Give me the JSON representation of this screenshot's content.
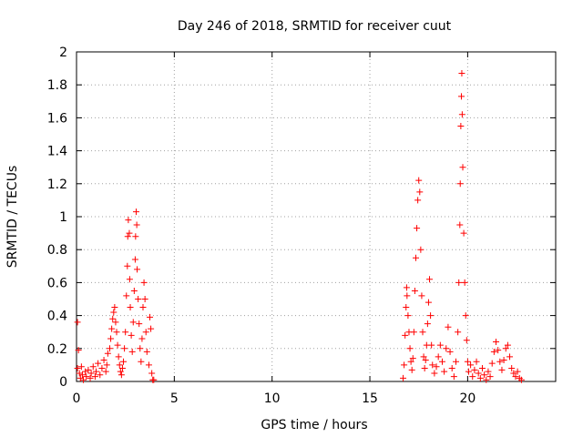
{
  "chart_data": {
    "type": "scatter",
    "title": "Day 246 of 2018, SRMTID for receiver cuut",
    "xlabel": "GPS time / hours",
    "ylabel": "SRMTID / TECUs",
    "xlim": [
      0,
      24.5
    ],
    "ylim": [
      0,
      2
    ],
    "x_ticks": [
      0,
      5,
      10,
      15,
      20
    ],
    "x_tick_labels": [
      "0",
      "5",
      "10",
      "15",
      "20"
    ],
    "y_ticks": [
      0,
      0.2,
      0.4,
      0.6,
      0.8,
      1,
      1.2,
      1.4,
      1.6,
      1.8,
      2
    ],
    "y_tick_labels": [
      "0",
      "0.2",
      "0.4",
      "0.6",
      "0.8",
      "1",
      "1.2",
      "1.4",
      "1.6",
      "1.8",
      "2"
    ],
    "grid": true,
    "marker": "+",
    "color": "#ff0000",
    "series": [
      {
        "name": "SRMTID",
        "points": [
          [
            0.05,
            0.36
          ],
          [
            0.1,
            0.19
          ],
          [
            0.05,
            0.08
          ],
          [
            0.15,
            0.05
          ],
          [
            0.2,
            0.02
          ],
          [
            0.25,
            0.09
          ],
          [
            0.3,
            0.04
          ],
          [
            0.35,
            0.01
          ],
          [
            0.45,
            0.06
          ],
          [
            0.5,
            0.03
          ],
          [
            0.6,
            0.07
          ],
          [
            0.7,
            0.02
          ],
          [
            0.75,
            0.05
          ],
          [
            0.85,
            0.09
          ],
          [
            0.95,
            0.03
          ],
          [
            1.0,
            0.06
          ],
          [
            1.1,
            0.11
          ],
          [
            1.2,
            0.04
          ],
          [
            1.3,
            0.08
          ],
          [
            1.4,
            0.13
          ],
          [
            1.5,
            0.06
          ],
          [
            1.55,
            0.1
          ],
          [
            1.6,
            0.17
          ],
          [
            1.7,
            0.2
          ],
          [
            1.75,
            0.26
          ],
          [
            1.8,
            0.32
          ],
          [
            1.85,
            0.38
          ],
          [
            1.9,
            0.42
          ],
          [
            1.95,
            0.45
          ],
          [
            2.0,
            0.36
          ],
          [
            2.05,
            0.3
          ],
          [
            2.1,
            0.22
          ],
          [
            2.15,
            0.15
          ],
          [
            2.2,
            0.1
          ],
          [
            2.25,
            0.06
          ],
          [
            2.3,
            0.04
          ],
          [
            2.35,
            0.08
          ],
          [
            2.4,
            0.12
          ],
          [
            2.45,
            0.2
          ],
          [
            2.5,
            0.3
          ],
          [
            2.55,
            0.52
          ],
          [
            2.6,
            0.7
          ],
          [
            2.62,
            0.88
          ],
          [
            2.65,
            0.98
          ],
          [
            2.7,
            0.9
          ],
          [
            2.72,
            0.62
          ],
          [
            2.75,
            0.45
          ],
          [
            2.8,
            0.28
          ],
          [
            2.85,
            0.18
          ],
          [
            2.9,
            0.36
          ],
          [
            2.95,
            0.55
          ],
          [
            3.0,
            0.74
          ],
          [
            3.02,
            0.88
          ],
          [
            3.05,
            1.03
          ],
          [
            3.08,
            0.95
          ],
          [
            3.1,
            0.68
          ],
          [
            3.15,
            0.5
          ],
          [
            3.2,
            0.35
          ],
          [
            3.25,
            0.2
          ],
          [
            3.3,
            0.12
          ],
          [
            3.35,
            0.26
          ],
          [
            3.4,
            0.45
          ],
          [
            3.45,
            0.6
          ],
          [
            3.5,
            0.5
          ],
          [
            3.55,
            0.3
          ],
          [
            3.6,
            0.18
          ],
          [
            3.7,
            0.1
          ],
          [
            3.75,
            0.39
          ],
          [
            3.8,
            0.32
          ],
          [
            3.85,
            0.05
          ],
          [
            3.9,
            0.01
          ],
          [
            3.95,
            0.01
          ],
          [
            16.7,
            0.02
          ],
          [
            16.75,
            0.1
          ],
          [
            16.8,
            0.28
          ],
          [
            16.85,
            0.45
          ],
          [
            16.88,
            0.57
          ],
          [
            16.9,
            0.52
          ],
          [
            16.95,
            0.4
          ],
          [
            17.0,
            0.3
          ],
          [
            17.05,
            0.2
          ],
          [
            17.1,
            0.12
          ],
          [
            17.15,
            0.07
          ],
          [
            17.2,
            0.14
          ],
          [
            17.25,
            0.3
          ],
          [
            17.3,
            0.55
          ],
          [
            17.35,
            0.75
          ],
          [
            17.4,
            0.93
          ],
          [
            17.45,
            1.1
          ],
          [
            17.5,
            1.22
          ],
          [
            17.55,
            1.15
          ],
          [
            17.6,
            0.8
          ],
          [
            17.65,
            0.52
          ],
          [
            17.7,
            0.3
          ],
          [
            17.75,
            0.15
          ],
          [
            17.8,
            0.08
          ],
          [
            17.85,
            0.13
          ],
          [
            17.9,
            0.22
          ],
          [
            17.95,
            0.35
          ],
          [
            18.0,
            0.48
          ],
          [
            18.05,
            0.62
          ],
          [
            18.1,
            0.4
          ],
          [
            18.15,
            0.22
          ],
          [
            18.2,
            0.1
          ],
          [
            18.3,
            0.05
          ],
          [
            18.4,
            0.09
          ],
          [
            18.5,
            0.15
          ],
          [
            18.6,
            0.22
          ],
          [
            18.7,
            0.12
          ],
          [
            18.8,
            0.06
          ],
          [
            18.9,
            0.2
          ],
          [
            19.0,
            0.33
          ],
          [
            19.1,
            0.18
          ],
          [
            19.2,
            0.08
          ],
          [
            19.3,
            0.03
          ],
          [
            19.4,
            0.12
          ],
          [
            19.5,
            0.3
          ],
          [
            19.55,
            0.6
          ],
          [
            19.6,
            0.95
          ],
          [
            19.62,
            1.2
          ],
          [
            19.65,
            1.55
          ],
          [
            19.68,
            1.73
          ],
          [
            19.7,
            1.87
          ],
          [
            19.72,
            1.62
          ],
          [
            19.75,
            1.3
          ],
          [
            19.8,
            0.9
          ],
          [
            19.85,
            0.6
          ],
          [
            19.9,
            0.4
          ],
          [
            19.95,
            0.25
          ],
          [
            20.0,
            0.12
          ],
          [
            20.05,
            0.06
          ],
          [
            20.15,
            0.1
          ],
          [
            20.25,
            0.03
          ],
          [
            20.35,
            0.07
          ],
          [
            20.45,
            0.12
          ],
          [
            20.55,
            0.05
          ],
          [
            20.65,
            0.02
          ],
          [
            20.75,
            0.08
          ],
          [
            20.85,
            0.04
          ],
          [
            20.95,
            0.01
          ],
          [
            21.05,
            0.06
          ],
          [
            21.15,
            0.03
          ],
          [
            21.25,
            0.11
          ],
          [
            21.35,
            0.18
          ],
          [
            21.45,
            0.24
          ],
          [
            21.55,
            0.19
          ],
          [
            21.65,
            0.12
          ],
          [
            21.75,
            0.07
          ],
          [
            21.85,
            0.13
          ],
          [
            21.95,
            0.2
          ],
          [
            22.05,
            0.22
          ],
          [
            22.15,
            0.15
          ],
          [
            22.25,
            0.08
          ],
          [
            22.35,
            0.05
          ],
          [
            22.45,
            0.03
          ],
          [
            22.55,
            0.06
          ],
          [
            22.65,
            0.02
          ],
          [
            22.75,
            0.01
          ]
        ]
      }
    ]
  }
}
